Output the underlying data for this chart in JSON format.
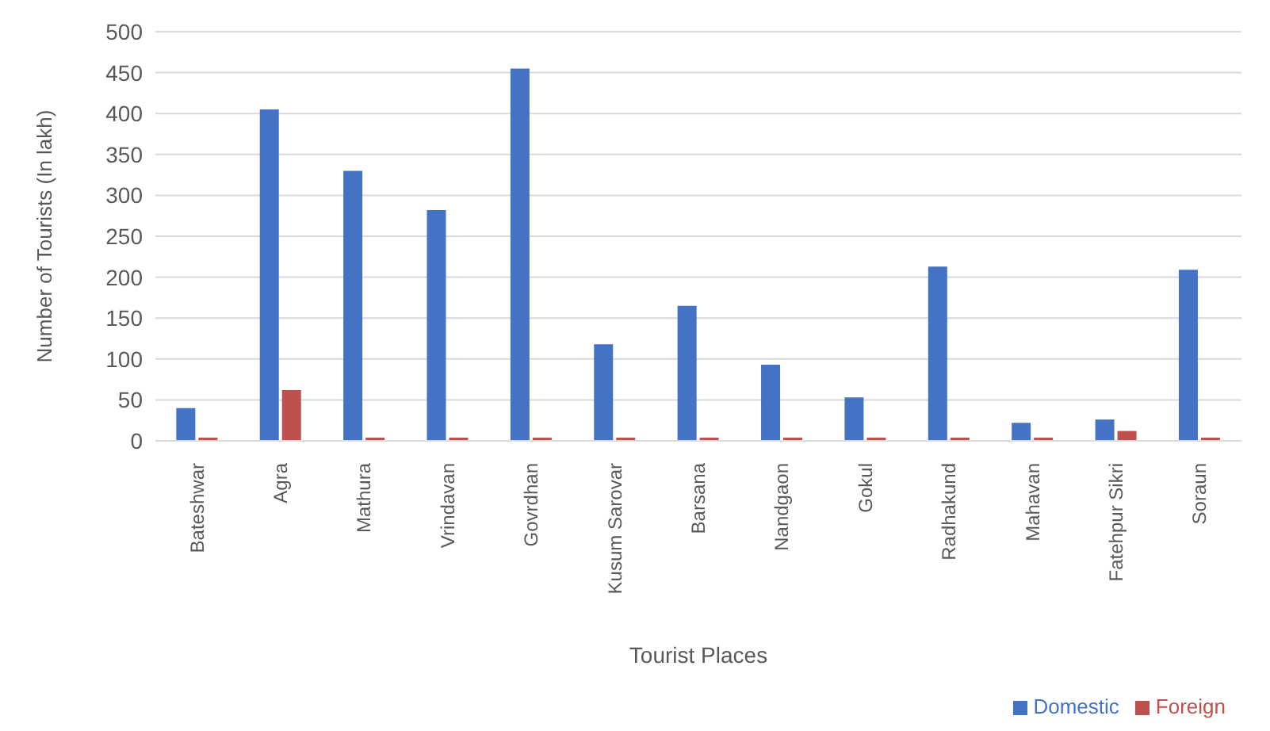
{
  "chart_data": {
    "type": "bar",
    "xlabel": "Tourist Places",
    "ylabel": "Number of Tourists (In lakh)",
    "categories": [
      "Bateshwar",
      "Agra",
      "Mathura",
      "Vrindavan",
      "Govrdhan",
      "Kusum Sarovar",
      "Barsana",
      "Nandgaon",
      "Gokul",
      "Radhakund",
      "Mahavan",
      "Fatehpur Sikri",
      "Soraun"
    ],
    "series": [
      {
        "name": "Domestic",
        "color": "#4472c4",
        "values": [
          40,
          405,
          330,
          282,
          455,
          118,
          165,
          93,
          53,
          213,
          22,
          26,
          209
        ]
      },
      {
        "name": "Foreign",
        "color": "#c0504d",
        "values": [
          2,
          62,
          2,
          2,
          2,
          2,
          2,
          2,
          2,
          2,
          2,
          12,
          2
        ]
      }
    ],
    "ylim": [
      0,
      500
    ],
    "yticks": [
      0,
      50,
      100,
      150,
      200,
      250,
      300,
      350,
      400,
      450,
      500
    ],
    "grid": "y",
    "legend": "bottom right"
  }
}
